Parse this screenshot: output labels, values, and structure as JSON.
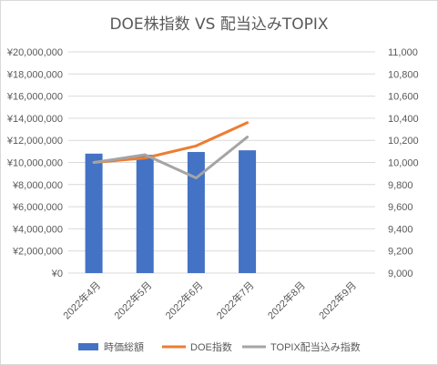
{
  "chart_data": {
    "type": "bar",
    "title": "DOE株指数 VS 配当込みTOPIX",
    "categories": [
      "2022年4月",
      "2022年5月",
      "2022年6月",
      "2022年7月",
      "2022年8月",
      "2022年9月"
    ],
    "series": [
      {
        "name": "時価総額",
        "type": "bar",
        "axis": "left",
        "values": [
          10800000,
          10700000,
          10950000,
          11100000,
          null,
          null
        ]
      },
      {
        "name": "DOE指数",
        "type": "line",
        "axis": "right",
        "values": [
          10000,
          10040,
          10150,
          10360,
          null,
          null
        ]
      },
      {
        "name": "TOPIX配当込み指数",
        "type": "line",
        "axis": "right",
        "values": [
          10000,
          10070,
          9860,
          10230,
          null,
          null
        ]
      }
    ],
    "y_left": {
      "min": 0,
      "max": 20000000,
      "tick_labels": [
        "¥0",
        "¥2,000,000",
        "¥4,000,000",
        "¥6,000,000",
        "¥8,000,000",
        "¥10,000,000",
        "¥12,000,000",
        "¥14,000,000",
        "¥16,000,000",
        "¥18,000,000",
        "¥20,000,000"
      ]
    },
    "y_right": {
      "min": 9000,
      "max": 11000,
      "tick_labels": [
        "9,000",
        "9,200",
        "9,400",
        "9,600",
        "9,800",
        "10,000",
        "10,200",
        "10,400",
        "10,600",
        "10,800",
        "11,000"
      ]
    },
    "grid": true,
    "legend_position": "bottom",
    "colors": {
      "bar": "#4472c4",
      "doe": "#ed7d31",
      "topix": "#a5a5a5",
      "grid": "#d9d9d9",
      "text": "#595959"
    }
  }
}
